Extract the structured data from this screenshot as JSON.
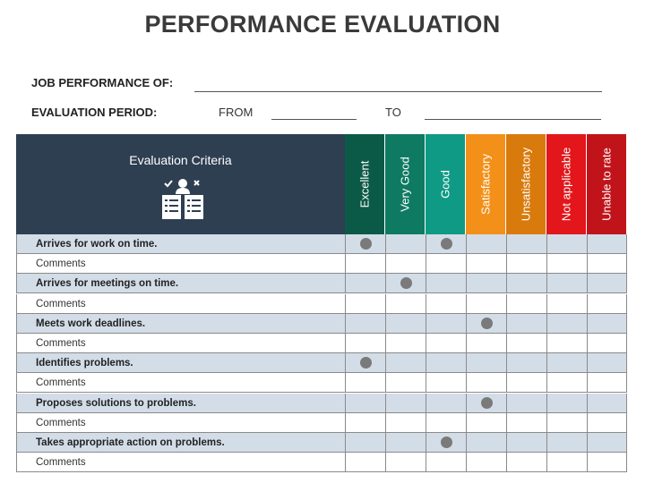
{
  "title": "PERFORMANCE EVALUATION",
  "job_performance_label": "JOB PERFORMANCE OF:",
  "evaluation_period_label": "EVALUATION PERIOD:",
  "from_label": "FROM",
  "to_label": "TO",
  "criteria_header": "Evaluation Criteria",
  "criteria_icon": "evaluation-checklist-icon",
  "ratings": [
    {
      "label": "Excellent",
      "color": "#0b5a47"
    },
    {
      "label": "Very Good",
      "color": "#0e7a62"
    },
    {
      "label": "Good",
      "color": "#0f9a85"
    },
    {
      "label": "Satisfactory",
      "color": "#f39019"
    },
    {
      "label": "Unsatisfactory",
      "color": "#d97a0c"
    },
    {
      "label": "Not applicable",
      "color": "#e3161b"
    },
    {
      "label": "Unable to rate",
      "color": "#c1141a"
    }
  ],
  "rows": [
    {
      "type": "criteria",
      "label": "Arrives for work on time.",
      "marks": [
        0,
        2
      ]
    },
    {
      "type": "comment",
      "label": "Comments",
      "marks": []
    },
    {
      "type": "criteria",
      "label": "Arrives for meetings on time.",
      "marks": [
        1
      ]
    },
    {
      "type": "comment",
      "label": "Comments",
      "marks": []
    },
    {
      "type": "criteria",
      "label": "Meets work deadlines.",
      "marks": [
        3
      ]
    },
    {
      "type": "comment",
      "label": "Comments",
      "marks": []
    },
    {
      "type": "criteria",
      "label": "Identifies problems.",
      "marks": [
        0
      ]
    },
    {
      "type": "comment",
      "label": "Comments",
      "marks": []
    },
    {
      "type": "criteria",
      "label": "Proposes solutions to problems.",
      "marks": [
        3
      ]
    },
    {
      "type": "comment",
      "label": "Comments",
      "marks": []
    },
    {
      "type": "criteria",
      "label": "Takes appropriate action on problems.",
      "marks": [
        2
      ]
    },
    {
      "type": "comment",
      "label": "Comments",
      "marks": []
    }
  ]
}
